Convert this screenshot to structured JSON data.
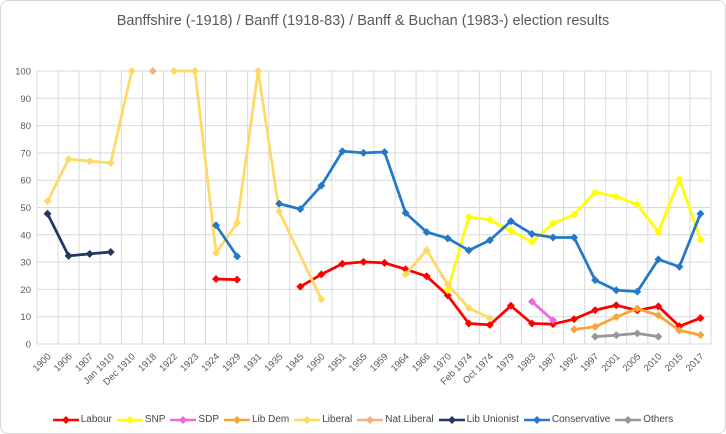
{
  "chart_data": {
    "type": "line",
    "title": "Banffshire (-1918) / Banff (1918-83) / Banff & Buchan (1983-) election results",
    "ylim": [
      0,
      100
    ],
    "y_ticks": [
      0,
      10,
      20,
      30,
      40,
      50,
      60,
      70,
      80,
      90,
      100
    ],
    "grid": true,
    "legend_position": "bottom",
    "marker": "diamond",
    "gridline_color": "#d9d9d9",
    "axis_text_color": "#595959",
    "categories": [
      "1900",
      "1906",
      "1907",
      "Jan 1910",
      "Dec 1910",
      "1918",
      "1922",
      "1923",
      "1924",
      "1929",
      "1931",
      "1935",
      "1945",
      "1950",
      "1951",
      "1955",
      "1959",
      "1964",
      "1966",
      "1970",
      "Feb 1974",
      "Oct 1974",
      "1979",
      "1983",
      "1987",
      "1992",
      "1997",
      "2001",
      "2005",
      "2010",
      "2015",
      "2017"
    ],
    "series": [
      {
        "id": "labour",
        "name": "Labour",
        "color": "#ff0000",
        "lines": [
          [
            [
              8,
              23.8
            ],
            [
              9,
              23.6
            ]
          ],
          [
            [
              12,
              21.0
            ],
            [
              13,
              25.5
            ],
            [
              14,
              29.4
            ],
            [
              15,
              30.1
            ],
            [
              16,
              29.7
            ],
            [
              17,
              27.4
            ],
            [
              18,
              24.8
            ],
            [
              19,
              17.8
            ],
            [
              20,
              7.5
            ],
            [
              21,
              7.0
            ],
            [
              22,
              14.0
            ],
            [
              23,
              7.5
            ],
            [
              24,
              7.3
            ],
            [
              25,
              9.1
            ],
            [
              26,
              12.4
            ],
            [
              27,
              14.2
            ],
            [
              28,
              12.3
            ],
            [
              29,
              13.8
            ],
            [
              30,
              6.5
            ],
            [
              31,
              9.5
            ]
          ]
        ]
      },
      {
        "id": "snp",
        "name": "SNP",
        "color": "#ffff00",
        "lines": [
          [
            [
              19,
              19.7
            ],
            [
              20,
              46.5
            ],
            [
              21,
              45.5
            ],
            [
              22,
              41.5
            ],
            [
              23,
              37.4
            ],
            [
              24,
              44.2
            ],
            [
              25,
              47.4
            ],
            [
              26,
              55.6
            ],
            [
              27,
              54.0
            ],
            [
              28,
              51.1
            ],
            [
              29,
              41.0
            ],
            [
              30,
              60.3
            ],
            [
              31,
              38.3
            ]
          ]
        ]
      },
      {
        "id": "sdp",
        "name": "SDP",
        "color": "#e96bdb",
        "lines": [
          [
            [
              23,
              15.5
            ],
            [
              24,
              8.7
            ]
          ]
        ]
      },
      {
        "id": "libdem",
        "name": "Lib Dem",
        "color": "#f6a53a",
        "lines": [
          [
            [
              25,
              5.3
            ],
            [
              26,
              6.3
            ],
            [
              27,
              9.9
            ],
            [
              28,
              13.0
            ],
            [
              29,
              10.5
            ],
            [
              30,
              5.0
            ],
            [
              31,
              3.3
            ]
          ]
        ]
      },
      {
        "id": "liberal",
        "name": "Liberal",
        "color": "#ffd966",
        "lines": [
          [
            [
              0,
              52.3
            ],
            [
              1,
              67.7
            ],
            [
              2,
              67.0
            ],
            [
              3,
              66.3
            ],
            [
              4,
              100
            ]
          ],
          [
            [
              6,
              100
            ],
            [
              7,
              100
            ],
            [
              8,
              33.3
            ],
            [
              9,
              44.3
            ],
            [
              10,
              100
            ],
            [
              11,
              48.5
            ],
            [
              13,
              16.4
            ]
          ],
          [
            [
              17,
              25.5
            ],
            [
              18,
              34.4
            ],
            [
              19,
              21.8
            ],
            [
              20,
              13.2
            ],
            [
              21,
              9.5
            ]
          ]
        ]
      },
      {
        "id": "natliberal",
        "name": "Nat Liberal",
        "color": "#f4b183",
        "lines": [
          [
            [
              5,
              100
            ]
          ]
        ]
      },
      {
        "id": "libunionist",
        "name": "Lib Unionist",
        "color": "#203864",
        "lines": [
          [
            [
              0,
              47.7
            ],
            [
              1,
              32.3
            ],
            [
              2,
              33.0
            ],
            [
              3,
              33.7
            ]
          ]
        ]
      },
      {
        "id": "conservative",
        "name": "Conservative",
        "color": "#2478c8",
        "lines": [
          [
            [
              8,
              43.5
            ],
            [
              9,
              32.1
            ]
          ],
          [
            [
              11,
              51.4
            ],
            [
              12,
              49.4
            ],
            [
              13,
              58.0
            ],
            [
              14,
              70.6
            ],
            [
              15,
              70.0
            ],
            [
              16,
              70.3
            ],
            [
              17,
              48.0
            ],
            [
              18,
              41.0
            ],
            [
              19,
              38.7
            ],
            [
              20,
              34.3
            ],
            [
              21,
              38.0
            ],
            [
              22,
              45.0
            ],
            [
              23,
              40.3
            ],
            [
              24,
              39.0
            ],
            [
              25,
              39.0
            ],
            [
              26,
              23.4
            ],
            [
              27,
              19.7
            ],
            [
              28,
              19.2
            ],
            [
              29,
              31.0
            ],
            [
              30,
              28.3
            ],
            [
              31,
              47.7
            ]
          ]
        ]
      },
      {
        "id": "others",
        "name": "Others",
        "color": "#979797",
        "lines": [
          [
            [
              26,
              2.7
            ],
            [
              27,
              3.2
            ],
            [
              28,
              3.9
            ],
            [
              29,
              2.7
            ]
          ]
        ]
      }
    ]
  }
}
